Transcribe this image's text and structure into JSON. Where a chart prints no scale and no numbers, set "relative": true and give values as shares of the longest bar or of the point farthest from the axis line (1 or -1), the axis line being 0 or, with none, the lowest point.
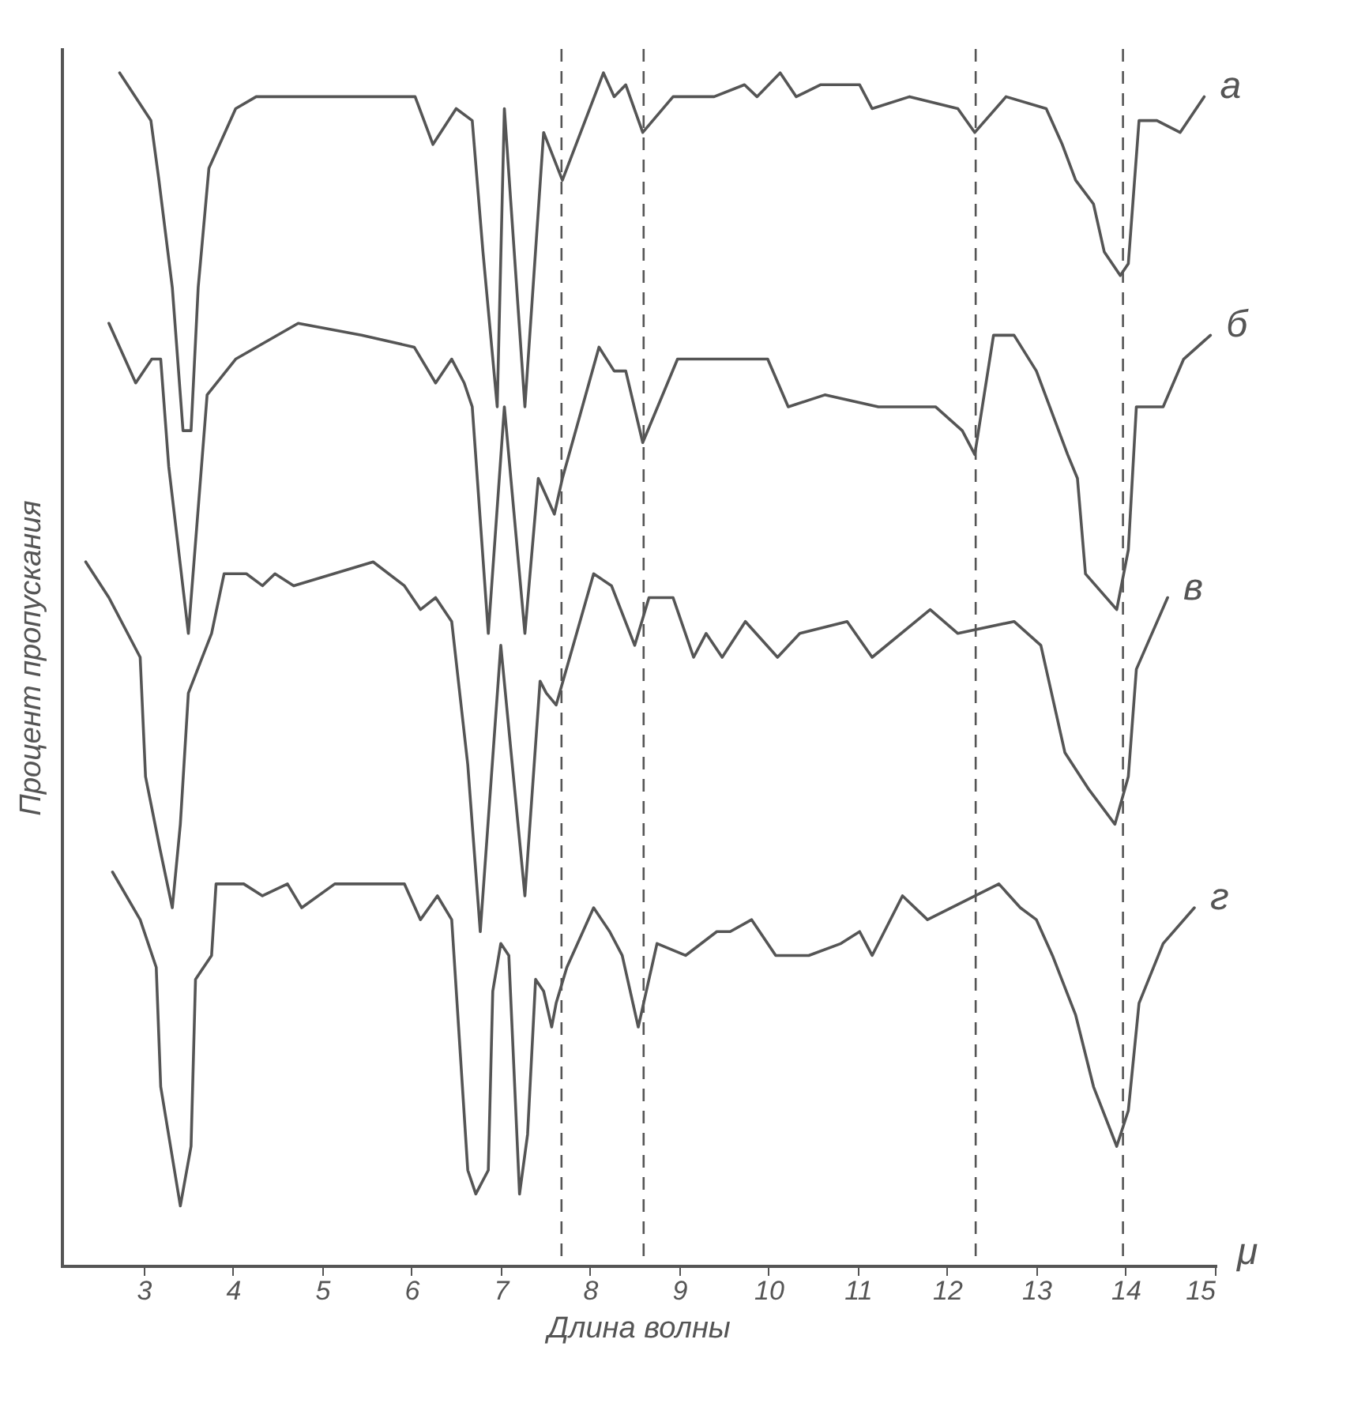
{
  "chart_data": {
    "type": "line",
    "relative": true,
    "xlabel": "Длина волны",
    "ylabel": "Процент пропускания",
    "annotations": [
      "μ"
    ],
    "xlim": [
      2.08,
      15
    ],
    "xticks": [
      3,
      4,
      5,
      6,
      7,
      8,
      9,
      10,
      11,
      12,
      13,
      14,
      15
    ],
    "grid": false,
    "legend": false,
    "marker": "none",
    "line_style": "solid",
    "ref_lines": [
      {
        "axis": "x",
        "value": 7.68,
        "label": null,
        "line_style": "dashed",
        "color": "#555555"
      },
      {
        "axis": "x",
        "value": 8.6,
        "label": null,
        "line_style": "dashed",
        "color": "#555555"
      },
      {
        "axis": "x",
        "value": 12.32,
        "label": null,
        "line_style": "dashed",
        "color": "#555555"
      },
      {
        "axis": "x",
        "value": 13.97,
        "label": null,
        "line_style": "dashed",
        "color": "#555555"
      }
    ],
    "series": [
      {
        "name": "а",
        "color": "#555555",
        "x": [
          2.73,
          3.08,
          3.17,
          3.32,
          3.44,
          3.53,
          3.61,
          3.73,
          3.85,
          4.03,
          4.26,
          4.96,
          5.21,
          6.04,
          6.24,
          6.5,
          6.68,
          6.8,
          6.96,
          7.04,
          7.27,
          7.48,
          7.69,
          8.15,
          8.27,
          8.4,
          8.59,
          8.93,
          9.16,
          9.39,
          9.73,
          9.87,
          10.13,
          10.31,
          10.58,
          10.75,
          11.02,
          11.16,
          11.58,
          12.12,
          12.31,
          12.66,
          13.11,
          13.29,
          13.44,
          13.64,
          13.76,
          13.94,
          14.03,
          14.15,
          14.35,
          14.61,
          14.88
        ],
        "values": [
          1.0,
          0.96,
          0.91,
          0.82,
          0.7,
          0.7,
          0.82,
          0.92,
          0.94,
          0.97,
          0.98,
          0.98,
          0.98,
          0.98,
          0.94,
          0.97,
          0.96,
          0.85,
          0.72,
          0.97,
          0.72,
          0.95,
          0.91,
          1.0,
          0.98,
          0.99,
          0.95,
          0.98,
          0.98,
          0.98,
          0.99,
          0.98,
          1.0,
          0.98,
          0.99,
          0.99,
          0.99,
          0.97,
          0.98,
          0.97,
          0.95,
          0.98,
          0.97,
          0.94,
          0.91,
          0.89,
          0.85,
          0.83,
          0.84,
          0.96,
          0.96,
          0.95,
          0.98
        ]
      },
      {
        "name": "б",
        "color": "#555555",
        "x": [
          2.61,
          2.91,
          3.09,
          3.19,
          3.28,
          3.5,
          3.71,
          4.03,
          4.73,
          5.44,
          6.03,
          6.27,
          6.45,
          6.59,
          6.68,
          6.86,
          7.04,
          7.27,
          7.42,
          7.6,
          7.69,
          8.1,
          8.27,
          8.4,
          8.59,
          8.98,
          9.21,
          9.46,
          9.99,
          10.22,
          10.63,
          11.23,
          11.58,
          11.87,
          12.17,
          12.31,
          12.52,
          12.75,
          13.0,
          13.35,
          13.46,
          13.55,
          13.9,
          14.03,
          14.12,
          14.42,
          14.65,
          14.95
        ],
        "values": [
          0.79,
          0.74,
          0.76,
          0.76,
          0.67,
          0.53,
          0.73,
          0.76,
          0.79,
          0.78,
          0.77,
          0.74,
          0.76,
          0.74,
          0.72,
          0.53,
          0.72,
          0.53,
          0.66,
          0.63,
          0.66,
          0.77,
          0.75,
          0.75,
          0.69,
          0.76,
          0.76,
          0.76,
          0.76,
          0.72,
          0.73,
          0.72,
          0.72,
          0.72,
          0.7,
          0.68,
          0.78,
          0.78,
          0.75,
          0.68,
          0.66,
          0.58,
          0.55,
          0.6,
          0.72,
          0.72,
          0.76,
          0.78
        ]
      },
      {
        "name": "в",
        "color": "#555555",
        "x": [
          2.35,
          2.61,
          2.96,
          3.02,
          3.18,
          3.32,
          3.41,
          3.5,
          3.76,
          3.9,
          4.15,
          4.33,
          4.47,
          4.68,
          5.57,
          5.92,
          6.1,
          6.27,
          6.45,
          6.63,
          6.77,
          7.0,
          7.27,
          7.44,
          7.51,
          7.62,
          8.04,
          8.24,
          8.5,
          8.66,
          8.93,
          9.16,
          9.3,
          9.48,
          9.74,
          10.1,
          10.35,
          10.88,
          11.16,
          11.81,
          12.12,
          12.75,
          13.05,
          13.32,
          13.58,
          13.88,
          14.03,
          14.12,
          14.47
        ],
        "values": [
          0.59,
          0.56,
          0.51,
          0.41,
          0.35,
          0.3,
          0.37,
          0.48,
          0.53,
          0.58,
          0.58,
          0.57,
          0.58,
          0.57,
          0.59,
          0.57,
          0.55,
          0.56,
          0.54,
          0.42,
          0.28,
          0.52,
          0.31,
          0.49,
          0.48,
          0.47,
          0.58,
          0.57,
          0.52,
          0.56,
          0.56,
          0.51,
          0.53,
          0.51,
          0.54,
          0.51,
          0.53,
          0.54,
          0.51,
          0.55,
          0.53,
          0.54,
          0.52,
          0.43,
          0.4,
          0.37,
          0.41,
          0.5,
          0.56
        ]
      },
      {
        "name": "г",
        "color": "#555555",
        "x": [
          2.65,
          2.96,
          3.14,
          3.19,
          3.41,
          3.53,
          3.58,
          3.76,
          3.81,
          4.12,
          4.33,
          4.61,
          4.77,
          5.14,
          5.92,
          6.1,
          6.29,
          6.45,
          6.63,
          6.72,
          6.86,
          6.91,
          7.0,
          7.09,
          7.21,
          7.3,
          7.39,
          7.48,
          7.57,
          7.62,
          7.74,
          8.04,
          8.22,
          8.36,
          8.54,
          8.75,
          9.07,
          9.42,
          9.57,
          9.81,
          10.08,
          10.45,
          10.81,
          11.02,
          11.16,
          11.5,
          11.78,
          12.58,
          12.82,
          13.0,
          13.18,
          13.44,
          13.64,
          13.9,
          14.03,
          14.15,
          14.42,
          14.77
        ],
        "values": [
          0.33,
          0.29,
          0.25,
          0.15,
          0.05,
          0.1,
          0.24,
          0.26,
          0.32,
          0.32,
          0.31,
          0.32,
          0.3,
          0.32,
          0.32,
          0.29,
          0.31,
          0.29,
          0.08,
          0.06,
          0.08,
          0.23,
          0.27,
          0.26,
          0.06,
          0.11,
          0.24,
          0.23,
          0.2,
          0.22,
          0.25,
          0.3,
          0.28,
          0.26,
          0.2,
          0.27,
          0.26,
          0.28,
          0.28,
          0.29,
          0.26,
          0.26,
          0.27,
          0.28,
          0.26,
          0.31,
          0.29,
          0.32,
          0.3,
          0.29,
          0.26,
          0.21,
          0.15,
          0.1,
          0.13,
          0.22,
          0.27,
          0.3
        ]
      }
    ]
  }
}
